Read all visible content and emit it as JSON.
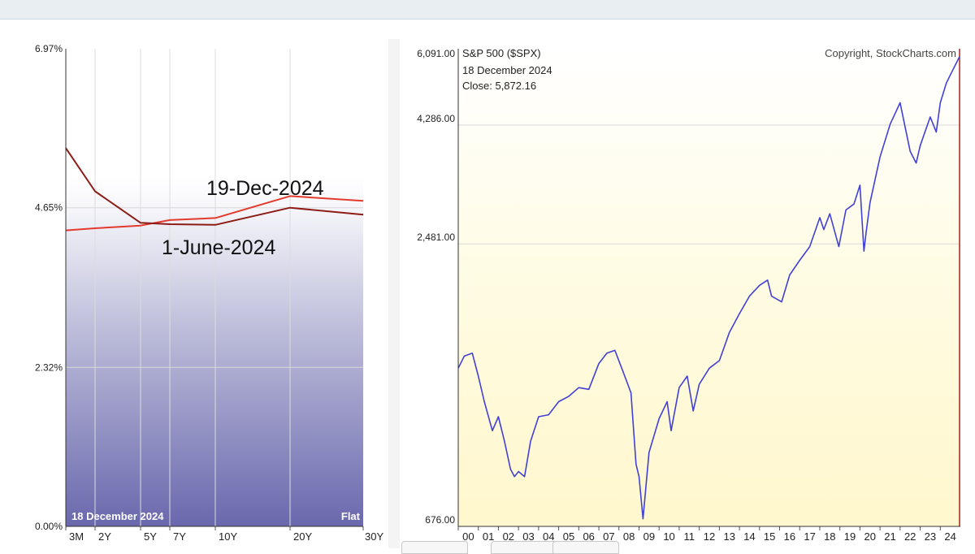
{
  "colors": {
    "yield_current": "#e23b2e",
    "yield_previous": "#8c1c16",
    "spx_line": "#4141d6",
    "marker_line": "#b02020"
  },
  "chart_data": [
    {
      "type": "line",
      "chart": "yield-curve",
      "categories": [
        "3M",
        "2Y",
        "5Y",
        "7Y",
        "10Y",
        "20Y",
        "30Y"
      ],
      "ylim": [
        0,
        6.97
      ],
      "y_ticks": [
        "6.97%",
        "4.65%",
        "2.32%",
        "0.00%"
      ],
      "y_tick_values": [
        6.97,
        4.65,
        2.32,
        0.0
      ],
      "grid": true,
      "series": [
        {
          "name": "19-Dec-2024",
          "values": [
            4.32,
            4.35,
            4.39,
            4.47,
            4.5,
            4.82,
            4.75
          ]
        },
        {
          "name": "1-June-2024",
          "values": [
            5.52,
            4.89,
            4.43,
            4.41,
            4.4,
            4.65,
            4.55
          ]
        }
      ],
      "footer_date": "18  December 2024",
      "footer_status": "Flat"
    },
    {
      "type": "line",
      "chart": "sp500",
      "title": "S&P 500 ($SPX)",
      "copyright": "Copyright, StockCharts.com",
      "date_label": "18  December 2024",
      "close_label": "Close: 5,872.16",
      "ylim": [
        676,
        6091
      ],
      "log_scale": true,
      "y_ticks": [
        "6,091.00",
        "4,286.00",
        "2,481.00",
        "676.00"
      ],
      "y_tick_values": [
        6091,
        4286,
        2481,
        676
      ],
      "x_ticks": [
        "00",
        "01",
        "02",
        "03",
        "04",
        "05",
        "06",
        "07",
        "08",
        "09",
        "10",
        "11",
        "12",
        "13",
        "14",
        "15",
        "16",
        "17",
        "18",
        "19",
        "20",
        "21",
        "22",
        "23",
        "24"
      ],
      "xlim": [
        2000.0,
        2025.0
      ],
      "grid": true,
      "series": [
        {
          "x": [
            2000.0,
            2000.3,
            2000.7,
            2001.0,
            2001.3,
            2001.7,
            2002.0,
            2002.3,
            2002.6,
            2002.8,
            2003.0,
            2003.3,
            2003.6,
            2004.0,
            2004.5,
            2005.0,
            2005.5,
            2006.0,
            2006.5,
            2007.0,
            2007.4,
            2007.8,
            2008.2,
            2008.6,
            2008.85,
            2009.0,
            2009.2,
            2009.5,
            2010.0,
            2010.4,
            2010.6,
            2011.0,
            2011.4,
            2011.7,
            2012.0,
            2012.5,
            2013.0,
            2013.5,
            2014.0,
            2014.5,
            2015.0,
            2015.4,
            2015.6,
            2016.1,
            2016.5,
            2017.0,
            2017.5,
            2018.0,
            2018.2,
            2018.5,
            2018.95,
            2019.3,
            2019.7,
            2020.0,
            2020.2,
            2020.3,
            2020.5,
            2021.0,
            2021.5,
            2022.0,
            2022.5,
            2022.8,
            2023.0,
            2023.5,
            2023.8,
            2024.0,
            2024.3,
            2024.6,
            2024.96
          ],
          "y": [
            1400,
            1480,
            1500,
            1350,
            1200,
            1050,
            1120,
            1000,
            880,
            850,
            870,
            850,
            1000,
            1120,
            1130,
            1200,
            1230,
            1280,
            1270,
            1430,
            1500,
            1520,
            1380,
            1250,
            900,
            850,
            700,
            950,
            1110,
            1200,
            1050,
            1280,
            1350,
            1150,
            1300,
            1400,
            1450,
            1650,
            1800,
            1950,
            2050,
            2100,
            1950,
            1900,
            2150,
            2300,
            2450,
            2800,
            2650,
            2850,
            2450,
            2900,
            2980,
            3250,
            2400,
            2600,
            3000,
            3700,
            4300,
            4750,
            3800,
            3600,
            3900,
            4450,
            4150,
            4750,
            5200,
            5500,
            5872.16
          ]
        }
      ]
    }
  ]
}
